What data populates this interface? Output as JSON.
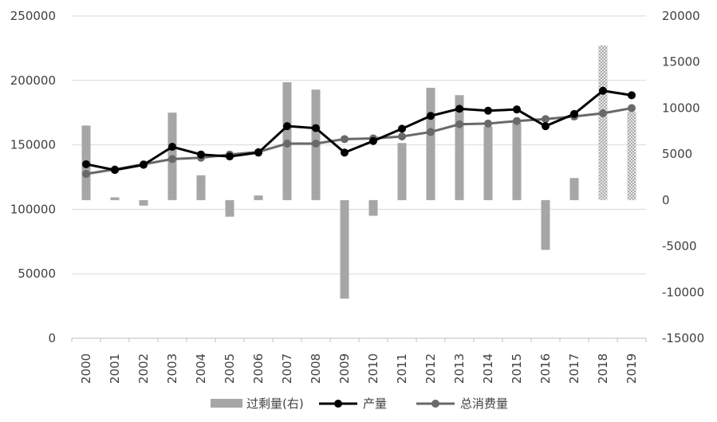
{
  "chart_data": {
    "type": "bar+line",
    "categories": [
      "2000",
      "2001",
      "2002",
      "2003",
      "2004",
      "2005",
      "2006",
      "2007",
      "2008",
      "2009",
      "2010",
      "2011",
      "2012",
      "2013",
      "2014",
      "2015",
      "2016",
      "2017",
      "2018",
      "2019"
    ],
    "series": [
      {
        "name": "过剩量(右)",
        "type": "bar",
        "axis": "right",
        "values": [
          8100,
          300,
          -600,
          9500,
          2700,
          -1800,
          500,
          12800,
          12000,
          -10700,
          -1700,
          6200,
          12200,
          11400,
          8000,
          8400,
          -5400,
          2400,
          16800,
          9600
        ],
        "color": "#a6a6a6",
        "hatched_from_index": 18
      },
      {
        "name": "产量",
        "type": "line",
        "axis": "left",
        "values": [
          135000,
          130500,
          134500,
          148500,
          142500,
          141000,
          144000,
          164500,
          163000,
          144000,
          153000,
          162500,
          172500,
          178000,
          176500,
          177500,
          164500,
          174000,
          192000,
          188500
        ],
        "color": "#000000"
      },
      {
        "name": "总消费量",
        "type": "line",
        "axis": "left",
        "values": [
          127500,
          131000,
          135000,
          139000,
          140000,
          142500,
          144500,
          151000,
          151000,
          154500,
          155000,
          156500,
          160000,
          166000,
          166500,
          168500,
          170000,
          172000,
          174500,
          178500
        ],
        "color": "#696969"
      }
    ],
    "y_left": {
      "min": 0,
      "max": 250000,
      "ticks": [
        "0",
        "50000",
        "100000",
        "150000",
        "200000",
        "250000"
      ]
    },
    "y_right": {
      "min": -15000,
      "max": 20000,
      "ticks": [
        "-15000",
        "-10000",
        "-5000",
        "0",
        "5000",
        "10000",
        "15000",
        "20000"
      ]
    },
    "grid": true,
    "legend_position": "bottom",
    "title": "",
    "xlabel": "",
    "ylabel": ""
  }
}
